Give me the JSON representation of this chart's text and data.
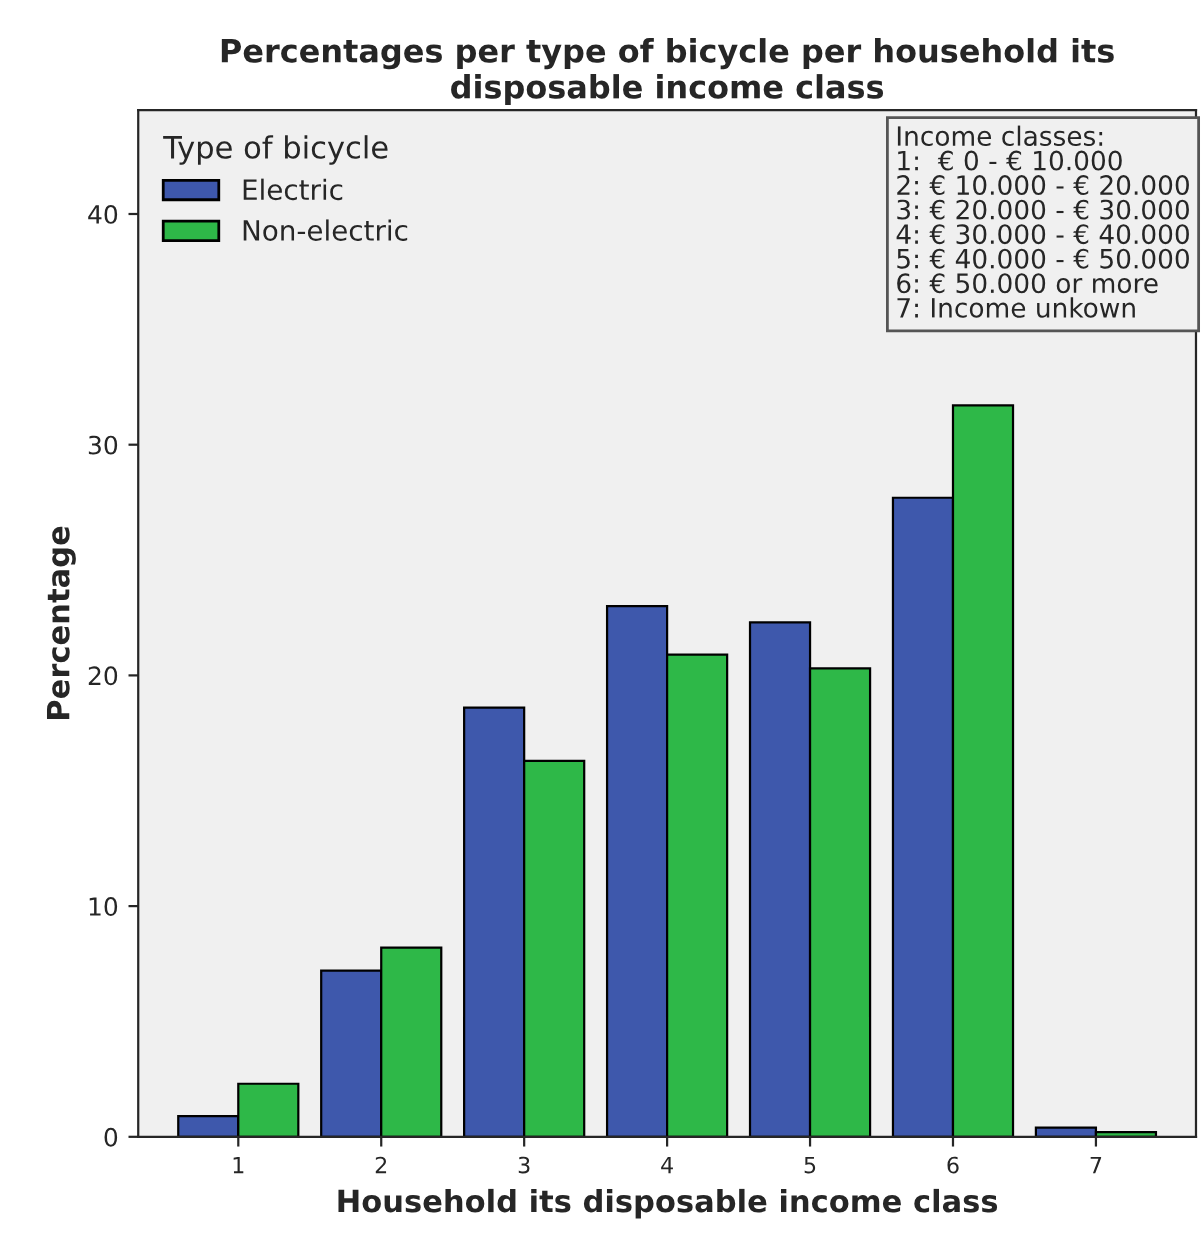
{
  "chart_data": {
    "type": "bar",
    "title": "Percentages per type of bicycle per household its disposable income class",
    "xlabel": "Household its disposable income class",
    "ylabel": "Percentage",
    "legend_title": "Type of bicycle",
    "categories": [
      "1",
      "2",
      "3",
      "4",
      "5",
      "6",
      "7"
    ],
    "series": [
      {
        "name": "Electric",
        "color": "#3e58ac",
        "values": [
          0.9,
          7.2,
          18.6,
          23.0,
          22.3,
          27.7,
          0.4
        ]
      },
      {
        "name": "Non-electric",
        "color": "#2eb848",
        "values": [
          2.3,
          8.2,
          16.3,
          20.9,
          20.3,
          31.7,
          0.2
        ]
      }
    ],
    "ylim": [
      0,
      44.5
    ],
    "yticks": [
      0,
      10,
      20,
      30,
      40
    ],
    "grid": false,
    "legend": "top left",
    "annotations": [
      "Income classes:\n1:  € 0 - € 10.000\n2: € 10.000 - € 20.000\n3: € 20.000 - € 30.000\n4: € 30.000 - € 40.000\n5: € 40.000 - € 50.000\n6: € 50.000 or more\n7: Income unkown"
    ]
  }
}
